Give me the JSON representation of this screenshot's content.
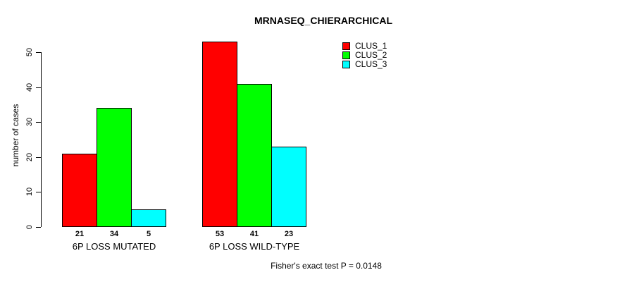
{
  "chart_data": {
    "type": "bar",
    "title": "MRNASEQ_CHIERARCHICAL",
    "ylabel": "number of cases",
    "xlabel": "",
    "categories": [
      "6P LOSS MUTATED",
      "6P LOSS WILD-TYPE"
    ],
    "series": [
      {
        "name": "CLUS_1",
        "color": "#FF0000",
        "values": [
          21,
          53
        ]
      },
      {
        "name": "CLUS_2",
        "color": "#00FF00",
        "values": [
          34,
          41
        ]
      },
      {
        "name": "CLUS_3",
        "color": "#00FFFF",
        "values": [
          5,
          23
        ]
      }
    ],
    "ylim": [
      0,
      50
    ],
    "yticks": [
      0,
      10,
      20,
      30,
      40,
      50
    ],
    "grid": false,
    "bar_value_labels_shown": true,
    "legend": {
      "position": "top-right",
      "entries": [
        "CLUS_1",
        "CLUS_2",
        "CLUS_3"
      ]
    },
    "annotation": "Fisher's exact test P = 0.0148"
  }
}
